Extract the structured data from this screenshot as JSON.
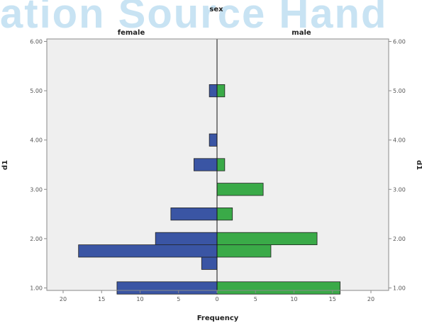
{
  "watermark": "ation Source Hand",
  "chart_data": {
    "type": "bar",
    "title": "sex",
    "orientation": "horizontal-back-to-back",
    "panels": [
      {
        "name": "female",
        "color": "#3a55a4",
        "bars": [
          {
            "y": 1.0,
            "value": 13
          },
          {
            "y": 1.5,
            "value": 2
          },
          {
            "y": 1.75,
            "value": 18
          },
          {
            "y": 2.0,
            "value": 8
          },
          {
            "y": 2.5,
            "value": 6
          },
          {
            "y": 3.5,
            "value": 3
          },
          {
            "y": 4.0,
            "value": 1
          },
          {
            "y": 5.0,
            "value": 1
          }
        ]
      },
      {
        "name": "male",
        "color": "#3aaa48",
        "bars": [
          {
            "y": 1.0,
            "value": 16
          },
          {
            "y": 1.75,
            "value": 7
          },
          {
            "y": 2.0,
            "value": 13
          },
          {
            "y": 2.5,
            "value": 2
          },
          {
            "y": 3.0,
            "value": 6
          },
          {
            "y": 3.5,
            "value": 1
          },
          {
            "y": 5.0,
            "value": 1
          }
        ]
      }
    ],
    "xlabel": "Frequency",
    "ylabel_left": "d1",
    "ylabel_right": "d1",
    "xticks": [
      "20",
      "15",
      "10",
      "5",
      "0",
      "5",
      "10",
      "15",
      "20"
    ],
    "xlim": [
      0,
      20
    ],
    "yticks": [
      "1.00",
      "2.00",
      "3.00",
      "4.00",
      "5.00",
      "6.00"
    ],
    "ylim": [
      0.95,
      6.05
    ],
    "bar_height": 0.25,
    "grid": false,
    "background": "#efefef"
  }
}
